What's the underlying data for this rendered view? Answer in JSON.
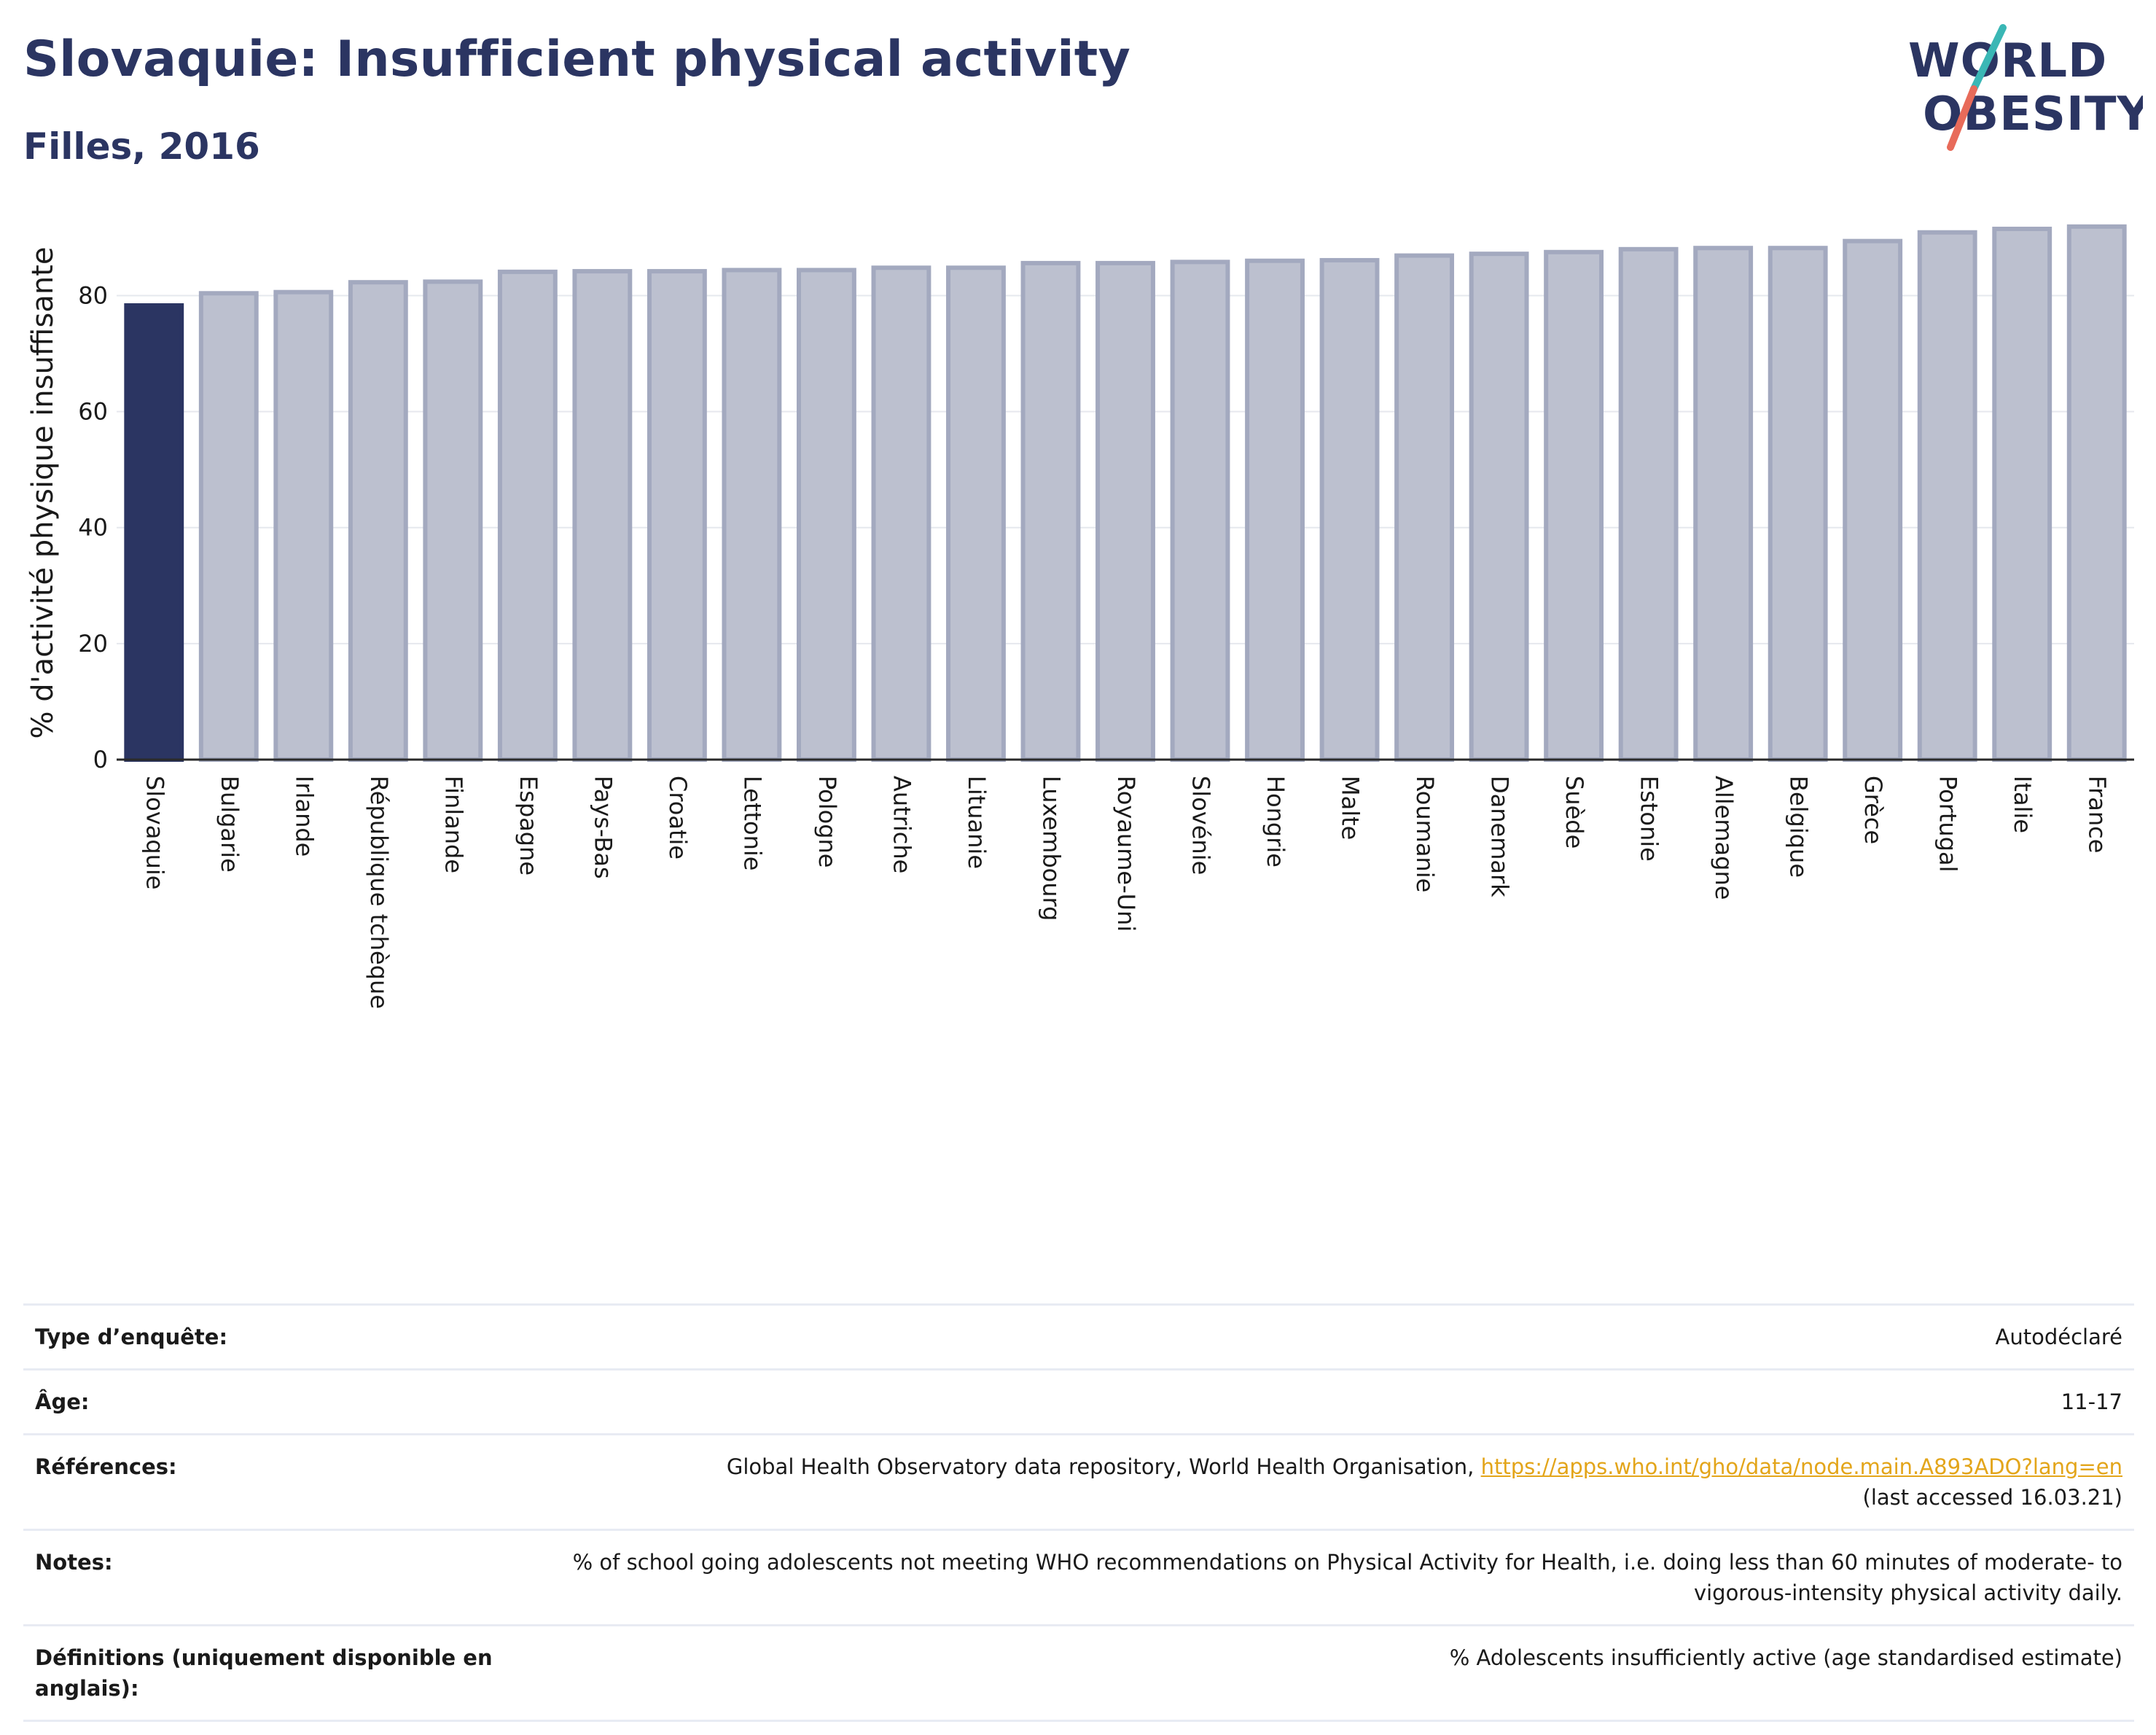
{
  "header": {
    "title": "Slovaquie: Insufficient physical activity",
    "subtitle": "Filles, 2016"
  },
  "logo": {
    "line1": "WORLD",
    "line2": "OBESITY",
    "accent_teal": "#3ab7b5",
    "accent_coral": "#e86b5a"
  },
  "colors": {
    "highlight": "#2b3562",
    "bar_fill": "#bcc0cf",
    "bar_stroke": "#a3a9bf",
    "title": "#2b3562",
    "link": "#e3a51a"
  },
  "chart_data": {
    "type": "bar",
    "title": "Slovaquie: Insufficient physical activity",
    "subtitle": "Filles, 2016",
    "xlabel": "",
    "ylabel": "% d'activité physique insuffisante",
    "ylim": [
      0,
      92
    ],
    "yticks": [
      0,
      20,
      40,
      60,
      80
    ],
    "grid": true,
    "highlight": "Slovaquie",
    "categories": [
      "Slovaquie",
      "Bulgarie",
      "Irlande",
      "République tchèque",
      "Finlande",
      "Espagne",
      "Pays-Bas",
      "Croatie",
      "Lettonie",
      "Pologne",
      "Autriche",
      "Lituanie",
      "Luxembourg",
      "Royaume-Uni",
      "Slovénie",
      "Hongrie",
      "Malte",
      "Roumanie",
      "Danemark",
      "Suède",
      "Estonie",
      "Allemagne",
      "Belgique",
      "Grèce",
      "Portugal",
      "Italie",
      "France"
    ],
    "values": [
      78.3,
      80.4,
      80.6,
      82.3,
      82.4,
      84.1,
      84.2,
      84.2,
      84.4,
      84.4,
      84.8,
      84.8,
      85.6,
      85.6,
      85.8,
      86.0,
      86.1,
      86.9,
      87.2,
      87.5,
      88.0,
      88.2,
      88.2,
      89.4,
      90.9,
      91.5,
      91.9
    ]
  },
  "info": {
    "rows": [
      {
        "label": "Type d’enquête:",
        "value": "Autodéclaré"
      },
      {
        "label": "Âge:",
        "value": "11-17"
      },
      {
        "label": "Références:",
        "value": "Global Health Observatory data repository, World Health Organisation, ",
        "link": "https://apps.who.int/gho/data/node.main.A893ADO?lang=en",
        "value_after": "(last accessed 16.03.21)"
      },
      {
        "label": "Notes:",
        "value": "% of school going adolescents not meeting WHO recommendations on Physical Activity for Health, i.e. doing less than 60 minutes of moderate- to vigorous-intensity physical activity daily."
      },
      {
        "label": "Définitions (uniquement disponible en anglais):",
        "value": "% Adolescents insufficiently active (age standardised estimate)"
      }
    ]
  }
}
